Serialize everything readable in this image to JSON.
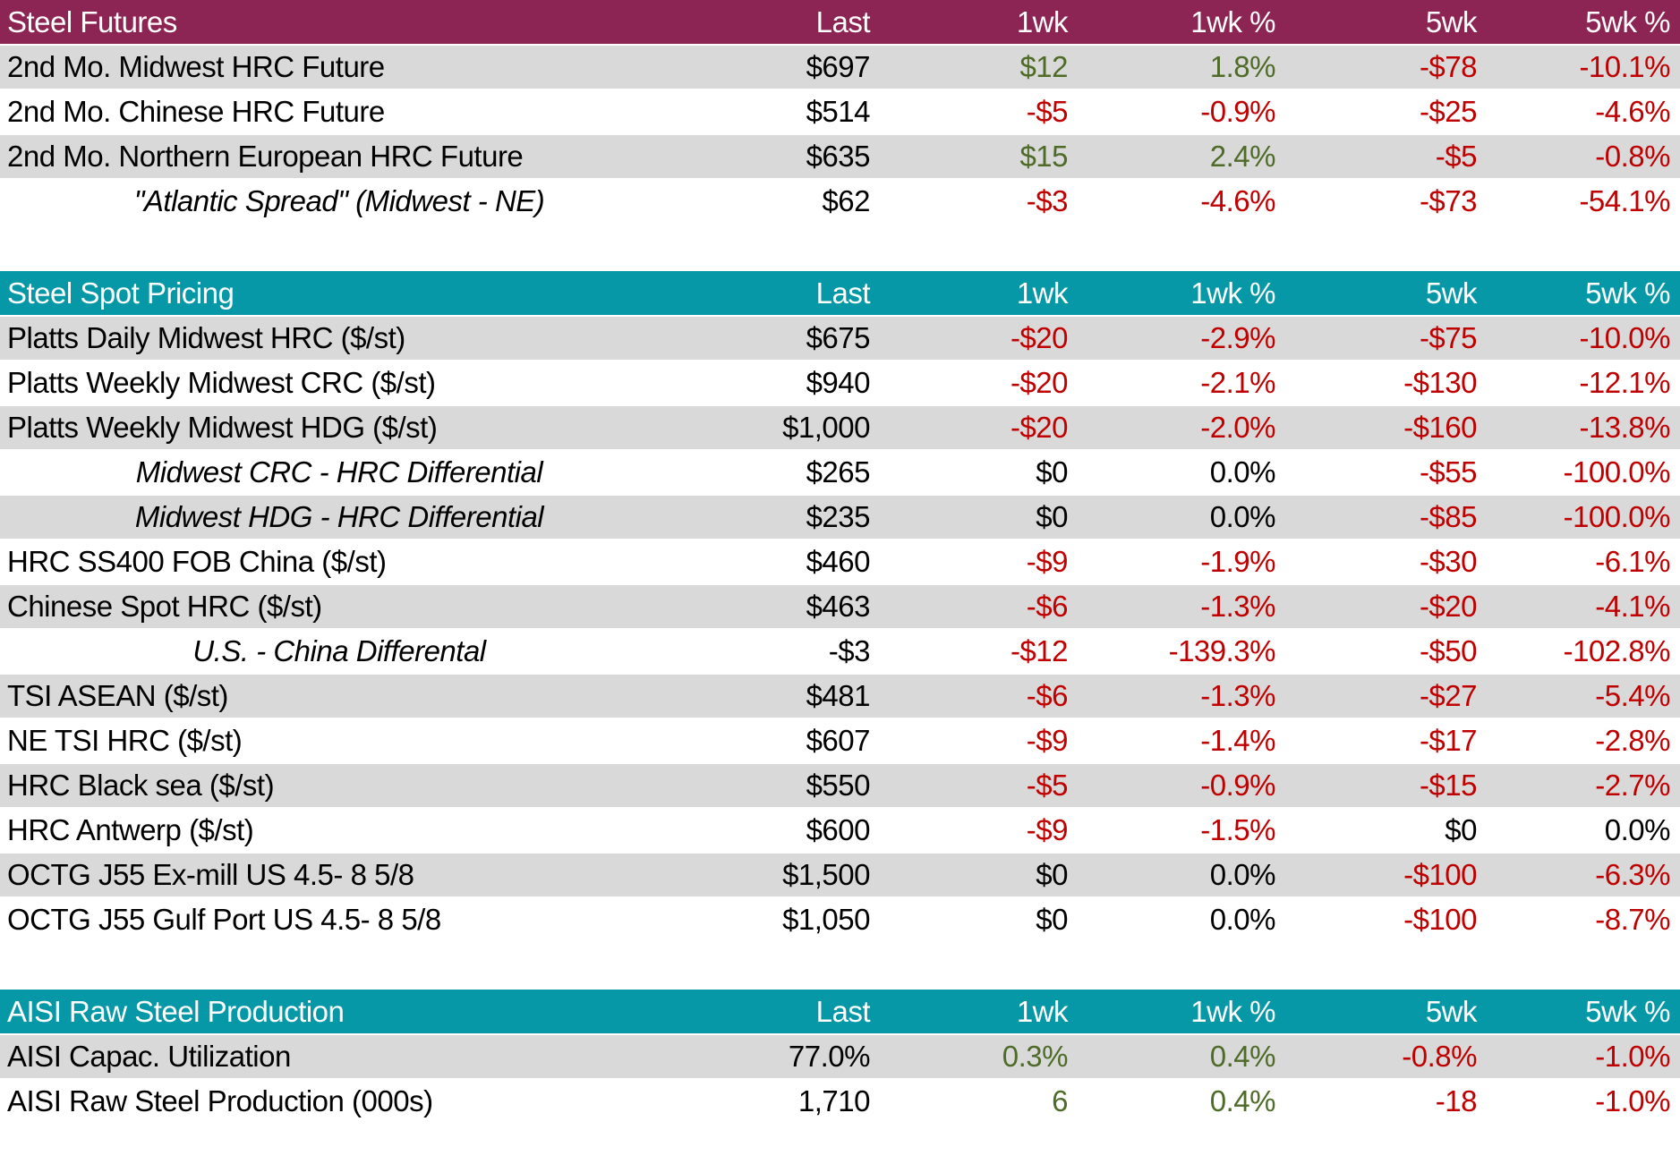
{
  "colors": {
    "header_maroon": "#8C2553",
    "header_teal": "#0698A6",
    "row_gray": "#D9D9D9",
    "row_white": "#FFFFFF",
    "negative_red": "#C00000",
    "positive_green": "#4F6B28",
    "text_black": "#000000"
  },
  "columns": [
    "Last",
    "1wk",
    "1wk %",
    "5wk",
    "5wk %"
  ],
  "sections": [
    {
      "title": "Steel Futures",
      "theme": "maroon",
      "rows": [
        {
          "label": "2nd Mo. Midwest HRC Future",
          "italic": false,
          "values": [
            "$697",
            "$12",
            "1.8%",
            "-$78",
            "-10.1%"
          ],
          "colors": [
            "k",
            "g",
            "g",
            "r",
            "r"
          ]
        },
        {
          "label": "2nd Mo. Chinese HRC Future",
          "italic": false,
          "values": [
            "$514",
            "-$5",
            "-0.9%",
            "-$25",
            "-4.6%"
          ],
          "colors": [
            "k",
            "r",
            "r",
            "r",
            "r"
          ]
        },
        {
          "label": "2nd Mo. Northern European HRC Future",
          "italic": false,
          "values": [
            "$635",
            "$15",
            "2.4%",
            "-$5",
            "-0.8%"
          ],
          "colors": [
            "k",
            "g",
            "g",
            "r",
            "r"
          ]
        },
        {
          "label": "\"Atlantic Spread\" (Midwest - NE)",
          "italic": true,
          "values": [
            "$62",
            "-$3",
            "-4.6%",
            "-$73",
            "-54.1%"
          ],
          "colors": [
            "k",
            "r",
            "r",
            "r",
            "r"
          ]
        }
      ]
    },
    {
      "title": "Steel Spot Pricing",
      "theme": "teal",
      "rows": [
        {
          "label": "Platts Daily Midwest HRC ($/st)",
          "italic": false,
          "values": [
            "$675",
            "-$20",
            "-2.9%",
            "-$75",
            "-10.0%"
          ],
          "colors": [
            "k",
            "r",
            "r",
            "r",
            "r"
          ]
        },
        {
          "label": "Platts Weekly Midwest CRC ($/st)",
          "italic": false,
          "values": [
            "$940",
            "-$20",
            "-2.1%",
            "-$130",
            "-12.1%"
          ],
          "colors": [
            "k",
            "r",
            "r",
            "r",
            "r"
          ]
        },
        {
          "label": "Platts Weekly Midwest HDG ($/st)",
          "italic": false,
          "values": [
            "$1,000",
            "-$20",
            "-2.0%",
            "-$160",
            "-13.8%"
          ],
          "colors": [
            "k",
            "r",
            "r",
            "r",
            "r"
          ]
        },
        {
          "label": "Midwest CRC - HRC Differential",
          "italic": true,
          "values": [
            "$265",
            "$0",
            "0.0%",
            "-$55",
            "-100.0%"
          ],
          "colors": [
            "k",
            "k",
            "k",
            "r",
            "r"
          ]
        },
        {
          "label": "Midwest HDG - HRC Differential",
          "italic": true,
          "values": [
            "$235",
            "$0",
            "0.0%",
            "-$85",
            "-100.0%"
          ],
          "colors": [
            "k",
            "k",
            "k",
            "r",
            "r"
          ]
        },
        {
          "label": "HRC SS400 FOB China ($/st)",
          "italic": false,
          "values": [
            "$460",
            "-$9",
            "-1.9%",
            "-$30",
            "-6.1%"
          ],
          "colors": [
            "k",
            "r",
            "r",
            "r",
            "r"
          ]
        },
        {
          "label": "Chinese Spot HRC ($/st)",
          "italic": false,
          "values": [
            "$463",
            "-$6",
            "-1.3%",
            "-$20",
            "-4.1%"
          ],
          "colors": [
            "k",
            "r",
            "r",
            "r",
            "r"
          ]
        },
        {
          "label": "U.S. - China Differental",
          "italic": true,
          "values": [
            "-$3",
            "-$12",
            "-139.3%",
            "-$50",
            "-102.8%"
          ],
          "colors": [
            "k",
            "r",
            "r",
            "r",
            "r"
          ]
        },
        {
          "label": "TSI ASEAN ($/st)",
          "italic": false,
          "values": [
            "$481",
            "-$6",
            "-1.3%",
            "-$27",
            "-5.4%"
          ],
          "colors": [
            "k",
            "r",
            "r",
            "r",
            "r"
          ]
        },
        {
          "label": "NE TSI HRC ($/st)",
          "italic": false,
          "values": [
            "$607",
            "-$9",
            "-1.4%",
            "-$17",
            "-2.8%"
          ],
          "colors": [
            "k",
            "r",
            "r",
            "r",
            "r"
          ]
        },
        {
          "label": "HRC Black sea ($/st)",
          "italic": false,
          "values": [
            "$550",
            "-$5",
            "-0.9%",
            "-$15",
            "-2.7%"
          ],
          "colors": [
            "k",
            "r",
            "r",
            "r",
            "r"
          ]
        },
        {
          "label": "HRC Antwerp ($/st)",
          "italic": false,
          "values": [
            "$600",
            "-$9",
            "-1.5%",
            "$0",
            "0.0%"
          ],
          "colors": [
            "k",
            "r",
            "r",
            "k",
            "k"
          ]
        },
        {
          "label": "OCTG J55 Ex-mill US 4.5- 8 5/8",
          "italic": false,
          "values": [
            "$1,500",
            "$0",
            "0.0%",
            "-$100",
            "-6.3%"
          ],
          "colors": [
            "k",
            "k",
            "k",
            "r",
            "r"
          ]
        },
        {
          "label": "OCTG J55 Gulf Port US 4.5- 8 5/8",
          "italic": false,
          "values": [
            "$1,050",
            "$0",
            "0.0%",
            "-$100",
            "-8.7%"
          ],
          "colors": [
            "k",
            "k",
            "k",
            "r",
            "r"
          ]
        }
      ]
    },
    {
      "title": "AISI Raw Steel Production",
      "theme": "teal",
      "rows": [
        {
          "label": "AISI Capac. Utilization",
          "italic": false,
          "values": [
            "77.0%",
            "0.3%",
            "0.4%",
            "-0.8%",
            "-1.0%"
          ],
          "colors": [
            "k",
            "g",
            "g",
            "r",
            "r"
          ]
        },
        {
          "label": "AISI Raw Steel Production (000s)",
          "italic": false,
          "values": [
            "1,710",
            "6",
            "0.4%",
            "-18",
            "-1.0%"
          ],
          "colors": [
            "k",
            "g",
            "g",
            "r",
            "r"
          ]
        }
      ]
    }
  ],
  "chart_data": [
    {
      "type": "table",
      "title": "Steel Futures",
      "columns": [
        "Last",
        "1wk",
        "1wk %",
        "5wk",
        "5wk %"
      ],
      "rows": [
        [
          "2nd Mo. Midwest HRC Future",
          697,
          12,
          1.8,
          -78,
          -10.1
        ],
        [
          "2nd Mo. Chinese HRC Future",
          514,
          -5,
          -0.9,
          -25,
          -4.6
        ],
        [
          "2nd Mo. Northern European HRC Future",
          635,
          15,
          2.4,
          -5,
          -0.8
        ],
        [
          "\"Atlantic Spread\" (Midwest - NE)",
          62,
          -3,
          -4.6,
          -73,
          -54.1
        ]
      ]
    },
    {
      "type": "table",
      "title": "Steel Spot Pricing",
      "columns": [
        "Last",
        "1wk",
        "1wk %",
        "5wk",
        "5wk %"
      ],
      "rows": [
        [
          "Platts Daily Midwest HRC ($/st)",
          675,
          -20,
          -2.9,
          -75,
          -10.0
        ],
        [
          "Platts Weekly Midwest CRC ($/st)",
          940,
          -20,
          -2.1,
          -130,
          -12.1
        ],
        [
          "Platts Weekly Midwest HDG ($/st)",
          1000,
          -20,
          -2.0,
          -160,
          -13.8
        ],
        [
          "Midwest CRC - HRC Differential",
          265,
          0,
          0.0,
          -55,
          -100.0
        ],
        [
          "Midwest HDG - HRC Differential",
          235,
          0,
          0.0,
          -85,
          -100.0
        ],
        [
          "HRC SS400 FOB China ($/st)",
          460,
          -9,
          -1.9,
          -30,
          -6.1
        ],
        [
          "Chinese Spot HRC ($/st)",
          463,
          -6,
          -1.3,
          -20,
          -4.1
        ],
        [
          "U.S. - China Differental",
          -3,
          -12,
          -139.3,
          -50,
          -102.8
        ],
        [
          "TSI ASEAN ($/st)",
          481,
          -6,
          -1.3,
          -27,
          -5.4
        ],
        [
          "NE TSI HRC ($/st)",
          607,
          -9,
          -1.4,
          -17,
          -2.8
        ],
        [
          "HRC Black sea ($/st)",
          550,
          -5,
          -0.9,
          -15,
          -2.7
        ],
        [
          "HRC Antwerp ($/st)",
          600,
          -9,
          -1.5,
          0,
          0.0
        ],
        [
          "OCTG J55 Ex-mill US 4.5- 8 5/8",
          1500,
          0,
          0.0,
          -100,
          -6.3
        ],
        [
          "OCTG J55 Gulf Port US 4.5- 8 5/8",
          1050,
          0,
          0.0,
          -100,
          -8.7
        ]
      ]
    },
    {
      "type": "table",
      "title": "AISI Raw Steel Production",
      "columns": [
        "Last",
        "1wk",
        "1wk %",
        "5wk",
        "5wk %"
      ],
      "rows": [
        [
          "AISI Capac. Utilization",
          77.0,
          0.3,
          0.4,
          -0.8,
          -1.0
        ],
        [
          "AISI Raw Steel Production (000s)",
          1710,
          6,
          0.4,
          -18,
          -1.0
        ]
      ]
    }
  ]
}
